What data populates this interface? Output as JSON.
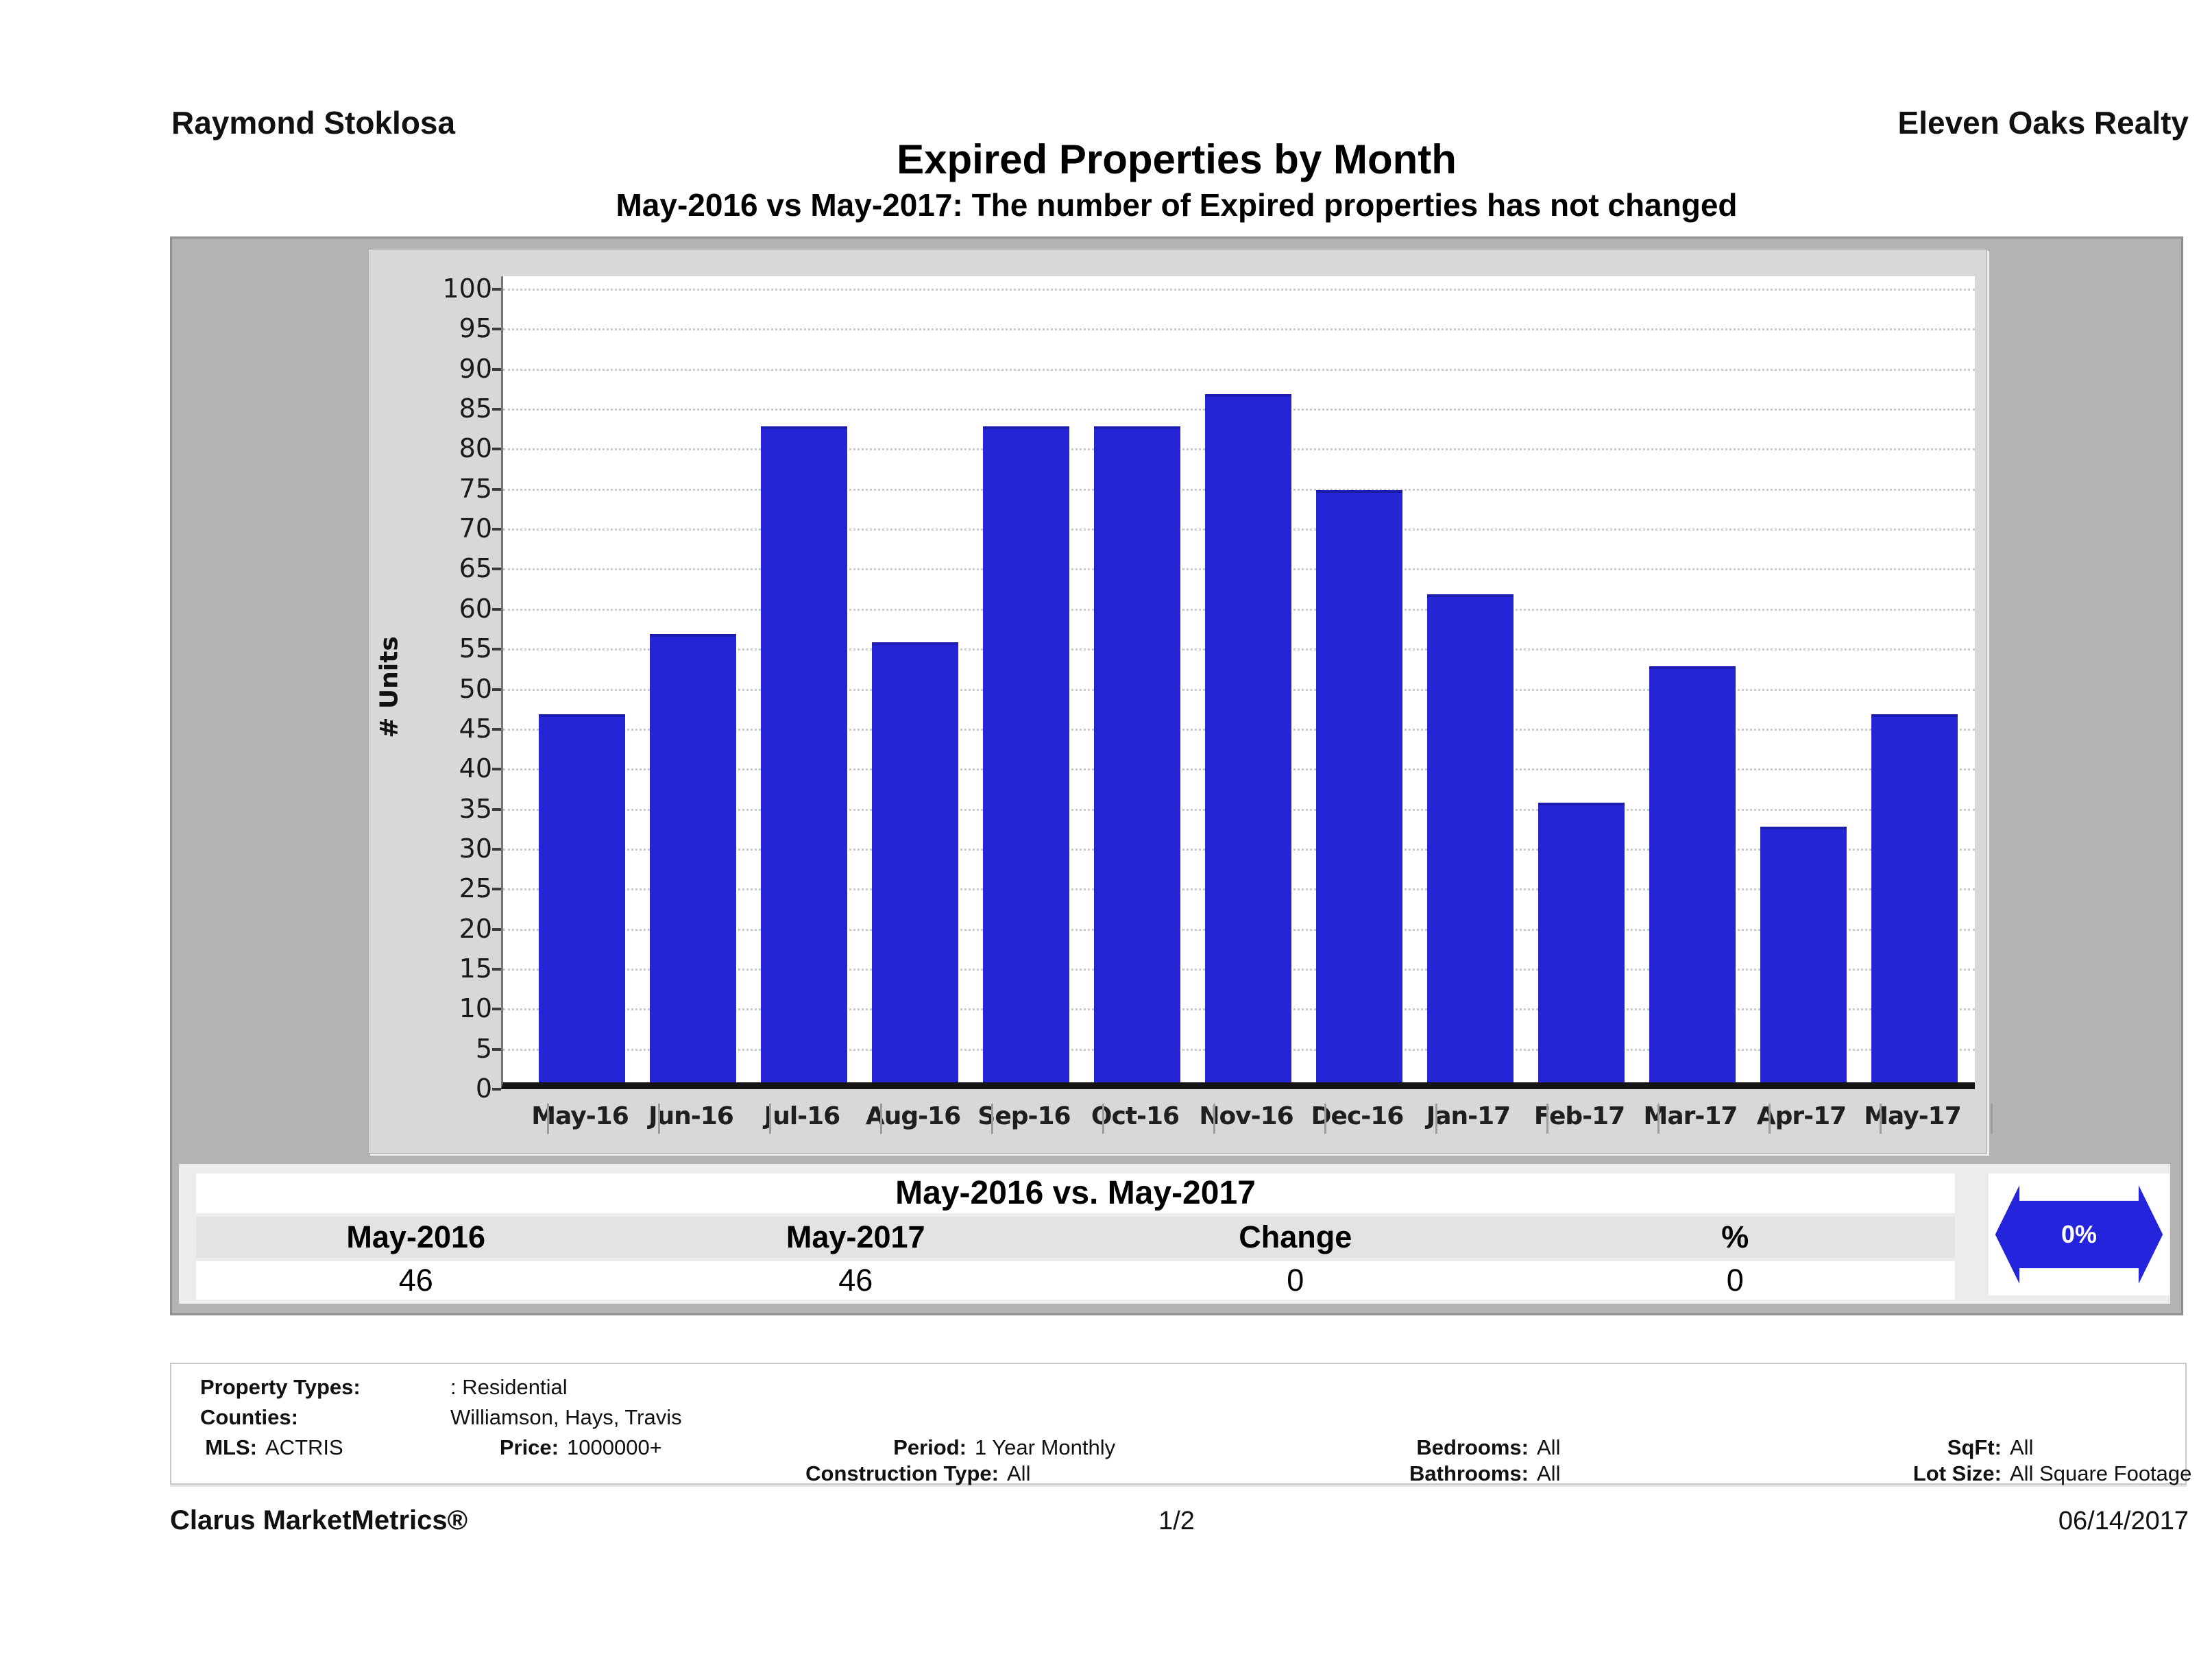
{
  "header": {
    "agent": "Raymond Stoklosa",
    "company": "Eleven Oaks Realty"
  },
  "title": "Expired Properties by Month",
  "subtitle": "May-2016 vs May-2017: The number of Expired  properties has not changed",
  "chart_data": {
    "type": "bar",
    "title": "Expired Properties by Month",
    "categories": [
      "May-16",
      "Jun-16",
      "Jul-16",
      "Aug-16",
      "Sep-16",
      "Oct-16",
      "Nov-16",
      "Dec-16",
      "Jan-17",
      "Feb-17",
      "Mar-17",
      "Apr-17",
      "May-17"
    ],
    "values": [
      46,
      56,
      82,
      55,
      82,
      82,
      86,
      74,
      61,
      35,
      52,
      32,
      46
    ],
    "xlabel": "",
    "ylabel": "# Units",
    "ylim": [
      0,
      100
    ],
    "ytick_step": 5,
    "grid": "horizontal-dotted",
    "legend": "none",
    "bar_color": "#2525d6"
  },
  "comparison": {
    "title": "May-2016 vs. May-2017",
    "columns": [
      "May-2016",
      "May-2017",
      "Change",
      "%"
    ],
    "values": [
      "46",
      "46",
      "0",
      "0"
    ],
    "indicator": {
      "label": "0%",
      "direction": "no-change",
      "color": "#2424dd"
    }
  },
  "filters": {
    "property_types_label": "Property Types:",
    "property_types": ": Residential",
    "counties_label": "Counties:",
    "counties": "Williamson, Hays, Travis",
    "mls_label": "MLS:",
    "mls": "ACTRIS",
    "price_label": "Price:",
    "price": "1000000+",
    "period_label": "Period:",
    "period": "1 Year Monthly",
    "construction_label": "Construction Type:",
    "construction": "All",
    "bedrooms_label": "Bedrooms:",
    "bedrooms": "All",
    "bathrooms_label": "Bathrooms:",
    "bathrooms": "All",
    "sqft_label": "SqFt:",
    "sqft": "All",
    "lot_label": "Lot Size:",
    "lot": "All Square Footage"
  },
  "footer": {
    "brand": "Clarus MarketMetrics®",
    "page": "1/2",
    "date": "06/14/2017"
  }
}
